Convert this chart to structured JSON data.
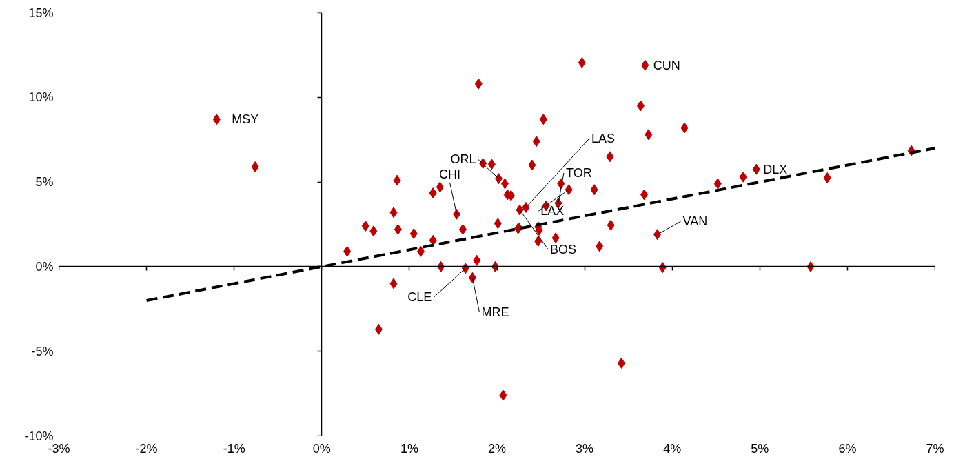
{
  "chart_data": {
    "type": "scatter",
    "marker": "diamond",
    "xlim": [
      -3,
      7
    ],
    "ylim": [
      -10,
      15
    ],
    "xticks": [
      {
        "value": -3,
        "label": "-3%"
      },
      {
        "value": -2,
        "label": "-2%"
      },
      {
        "value": -1,
        "label": "-1%"
      },
      {
        "value": 0,
        "label": "0%"
      },
      {
        "value": 1,
        "label": "1%"
      },
      {
        "value": 2,
        "label": "2%"
      },
      {
        "value": 3,
        "label": "3%"
      },
      {
        "value": 4,
        "label": "4%"
      },
      {
        "value": 5,
        "label": "5%"
      },
      {
        "value": 6,
        "label": "6%"
      },
      {
        "value": 7,
        "label": "7%"
      }
    ],
    "yticks": [
      {
        "value": -10,
        "label": "-10%"
      },
      {
        "value": -5,
        "label": "-5%"
      },
      {
        "value": 0,
        "label": "0%"
      },
      {
        "value": 5,
        "label": "5%"
      },
      {
        "value": 10,
        "label": "10%"
      },
      {
        "value": 15,
        "label": "15%"
      }
    ],
    "series": [
      {
        "type": "scatter",
        "color": "#c00000",
        "x": [
          -1.2,
          -0.76,
          0.29,
          0.5,
          0.59,
          0.65,
          0.82,
          0.86,
          0.87,
          0.82,
          1.05,
          1.13,
          1.27,
          1.27,
          1.35,
          1.36,
          1.54,
          1.61,
          1.64,
          1.72,
          1.77,
          1.98,
          2.07,
          1.84,
          1.94,
          2.02,
          2.09,
          2.12,
          2.16,
          2.01,
          2.26,
          2.24,
          1.79,
          2.97,
          3.69,
          3.64,
          4.14,
          3.73,
          2.53,
          2.45,
          2.4,
          3.29,
          2.73,
          2.82,
          3.11,
          3.68,
          2.7,
          2.56,
          2.33,
          2.25,
          2.47,
          2.48,
          2.47,
          2.67,
          3.3,
          3.17,
          3.83,
          3.89,
          4.52,
          4.81,
          4.96,
          5.77,
          6.73,
          5.58,
          3.42
        ],
        "values": [
          8.7,
          5.9,
          0.9,
          2.4,
          2.1,
          -3.7,
          3.2,
          5.1,
          2.2,
          -1.0,
          1.95,
          0.9,
          1.55,
          4.35,
          4.7,
          0.0,
          3.1,
          2.2,
          -0.1,
          -0.65,
          0.37,
          0.0,
          -7.6,
          6.1,
          6.05,
          5.2,
          4.9,
          4.25,
          4.2,
          2.55,
          3.35,
          2.25,
          10.8,
          12.05,
          11.9,
          9.5,
          8.2,
          7.8,
          8.7,
          7.4,
          6.0,
          6.5,
          4.9,
          4.55,
          4.55,
          4.25,
          3.75,
          3.6,
          3.5,
          2.3,
          2.35,
          2.15,
          1.5,
          1.7,
          2.45,
          1.2,
          1.9,
          -0.05,
          4.9,
          5.3,
          5.75,
          5.25,
          6.85,
          0.0,
          -5.7
        ]
      },
      {
        "type": "line",
        "color": "#000000",
        "line_style": "dashed",
        "marker": "none",
        "x": [
          -2,
          7
        ],
        "values": [
          -2,
          7
        ]
      }
    ],
    "annotations": [
      {
        "text": "MSY",
        "x": -1.2,
        "y": 8.7
      },
      {
        "text": "CUN",
        "x": 3.69,
        "y": 11.9
      },
      {
        "text": "DLX",
        "x": 4.96,
        "y": 5.75
      },
      {
        "text": "VAN",
        "x": 3.83,
        "y": 1.9
      },
      {
        "text": "ORL",
        "x": 2.02,
        "y": 5.2
      },
      {
        "text": "CHI",
        "x": 1.54,
        "y": 3.1
      },
      {
        "text": "LAS",
        "x": 2.33,
        "y": 3.5
      },
      {
        "text": "TOR",
        "x": 2.7,
        "y": 3.75
      },
      {
        "text": "LAX",
        "x": 2.82,
        "y": 4.55
      },
      {
        "text": "BOS",
        "x": 2.26,
        "y": 3.35
      },
      {
        "text": "CLE",
        "x": 1.64,
        "y": -0.1
      },
      {
        "text": "MRE",
        "x": 1.72,
        "y": -0.65
      }
    ]
  }
}
